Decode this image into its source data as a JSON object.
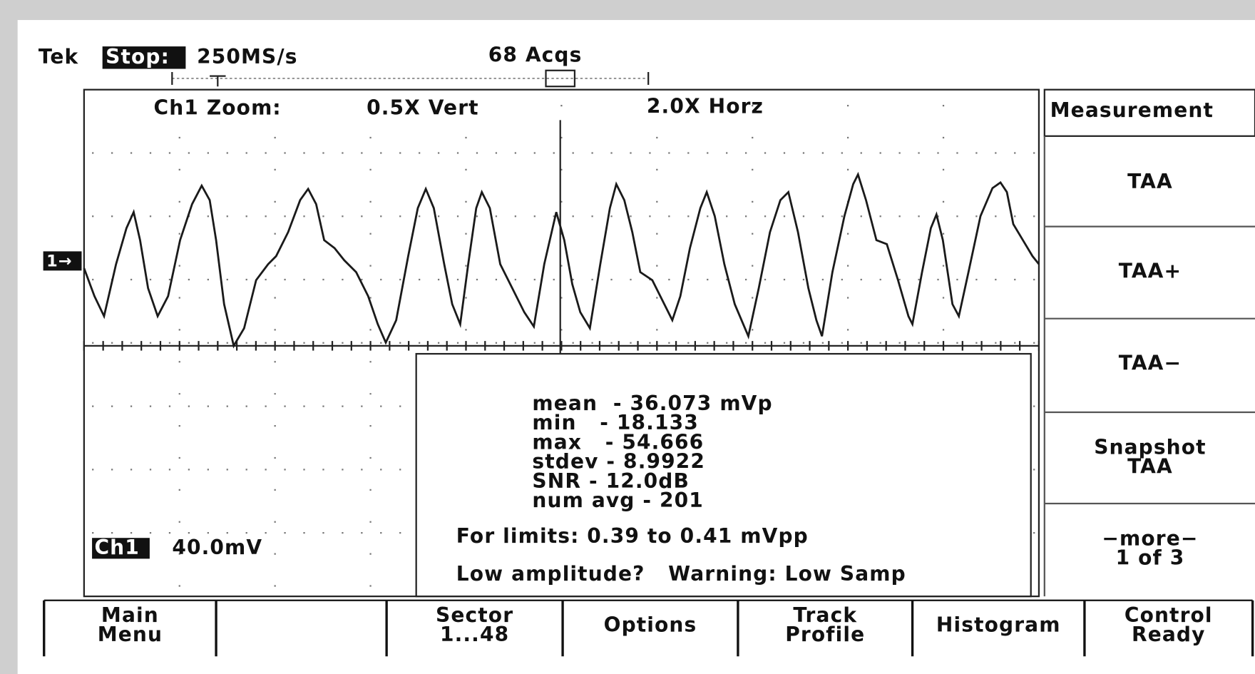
{
  "status": {
    "brand": "Tek",
    "state": "Stop:",
    "rate": "250MS/s",
    "acqs": "68 Acqs"
  },
  "zoom": {
    "label": "Ch1 Zoom:",
    "vert": "0.5X Vert",
    "horz": "2.0X Horz"
  },
  "channel": {
    "marker": "1→",
    "label": "Ch1",
    "scale": "40.0mV"
  },
  "readout": {
    "lines": [
      "mean  - 36.073 mVp",
      "min   - 18.133",
      "max   - 54.666",
      "stdev - 8.9922",
      "SNR - 12.0dB",
      "num avg - 201"
    ],
    "limits": "For limits: 0.39 to 0.41 mVpp",
    "warning": "Low amplitude?   Warning: Low Samp"
  },
  "side_menu": {
    "title": "Measurement",
    "items": [
      {
        "lines": [
          "TAA"
        ]
      },
      {
        "lines": [
          "TAA+"
        ]
      },
      {
        "lines": [
          "TAA−"
        ]
      },
      {
        "lines": [
          "Snapshot",
          "TAA"
        ]
      },
      {
        "lines": [
          "−more−",
          "1 of 3"
        ]
      }
    ]
  },
  "bottom_menu": [
    {
      "lines": [
        "Main",
        "Menu"
      ]
    },
    {
      "lines": []
    },
    {
      "lines": [
        "Sector",
        "1...48"
      ]
    },
    {
      "lines": [
        "Options"
      ]
    },
    {
      "lines": [
        "Track",
        "Profile"
      ]
    },
    {
      "lines": [
        "Histogram"
      ]
    },
    {
      "lines": [
        "Control",
        "Ready"
      ]
    }
  ]
}
